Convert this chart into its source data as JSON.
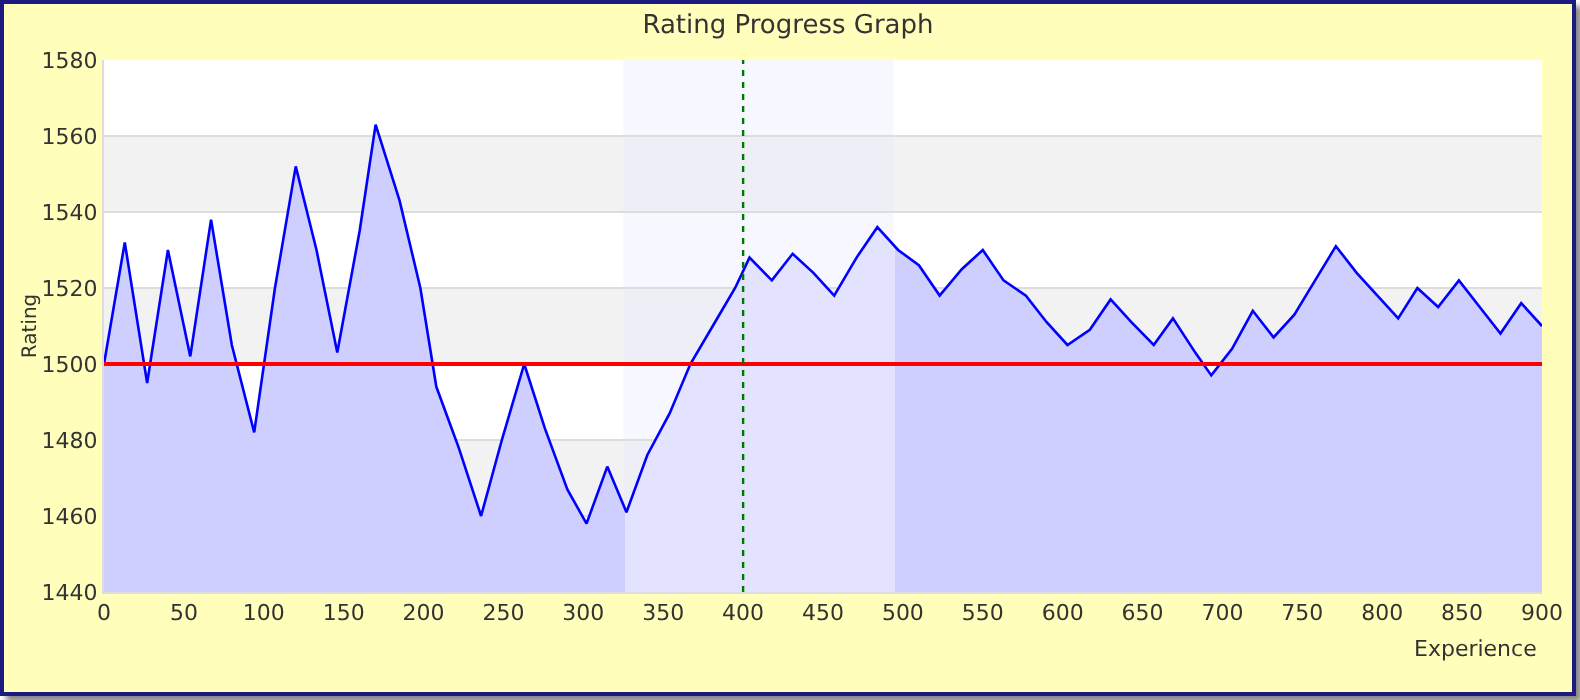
{
  "chart_data": {
    "type": "area",
    "title": "Rating Progress Graph",
    "xlabel": "Experience",
    "ylabel": "Rating",
    "x": [
      0,
      13,
      27,
      40,
      54,
      67,
      80,
      94,
      107,
      120,
      133,
      146,
      160,
      170,
      185,
      198,
      208,
      222,
      236,
      249,
      263,
      276,
      290,
      302,
      315,
      327,
      340,
      354,
      367,
      381,
      395,
      404,
      418,
      431,
      444,
      457,
      471,
      484,
      497,
      510,
      523,
      537,
      550,
      563,
      577,
      590,
      603,
      617,
      630,
      643,
      657,
      669,
      683,
      693,
      706,
      719,
      732,
      745,
      758,
      771,
      784,
      797,
      810,
      822,
      835,
      848,
      861,
      874,
      887,
      900
    ],
    "series": [
      {
        "color": "#0000ff",
        "values": [
          1500,
          1532,
          1495,
          1530,
          1502,
          1538,
          1505,
          1482,
          1520,
          1552,
          1530,
          1503,
          1535,
          1563,
          1543,
          1520,
          1494,
          1478,
          1460,
          1480,
          1500,
          1483,
          1467,
          1458,
          1473,
          1461,
          1476,
          1487,
          1500,
          1510,
          1520,
          1528,
          1522,
          1529,
          1524,
          1518,
          1528,
          1536,
          1530,
          1526,
          1518,
          1525,
          1530,
          1522,
          1518,
          1511,
          1505,
          1509,
          1517,
          1511,
          1505,
          1512,
          1503,
          1497,
          1504,
          1514,
          1507,
          1513,
          1522,
          1531,
          1524,
          1518,
          1512,
          1520,
          1515,
          1522,
          1515,
          1508,
          1516,
          1510
        ]
      }
    ],
    "xlim": [
      0,
      900
    ],
    "xticks": [
      0,
      50,
      100,
      150,
      200,
      250,
      300,
      350,
      400,
      450,
      500,
      550,
      600,
      650,
      700,
      750,
      800,
      850,
      900
    ],
    "ylim": [
      1440,
      1580
    ],
    "yticks": [
      1440,
      1460,
      1480,
      1500,
      1520,
      1540,
      1560,
      1580
    ],
    "grid": "y",
    "marker": "none",
    "line_style": "solid",
    "ref_lines": [
      {
        "axis": "y",
        "value": 1500,
        "color": "#ff0000",
        "line_style": "solid"
      },
      {
        "axis": "x",
        "value": 400,
        "color": "#007700",
        "line_style": "dotted"
      }
    ],
    "bands": [
      {
        "axis": "x",
        "from": 325,
        "to": 494
      }
    ]
  }
}
